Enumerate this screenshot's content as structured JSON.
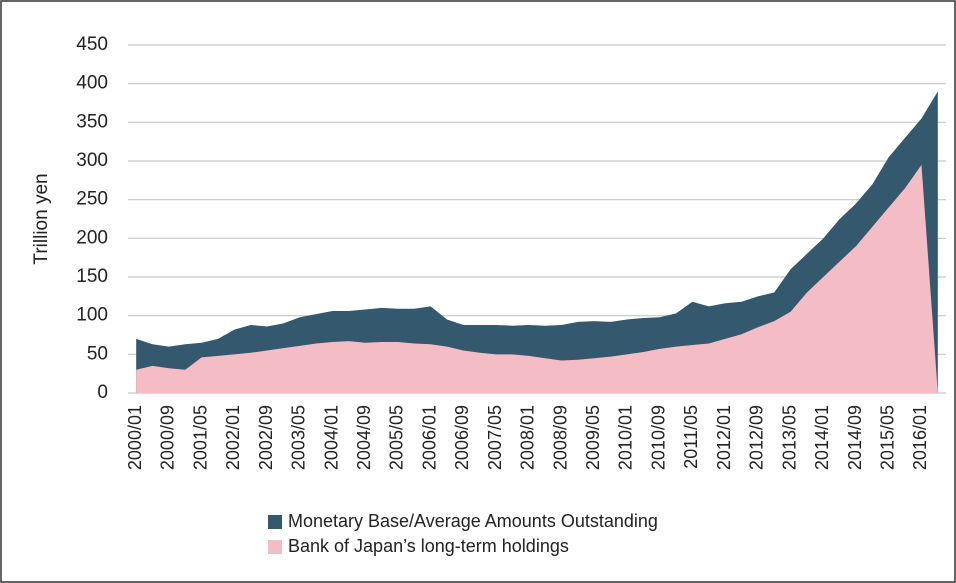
{
  "chart_data": {
    "type": "area",
    "y_label": "Trillion yen",
    "categories": [
      "2000/01",
      null,
      "2000/09",
      null,
      "2001/05",
      null,
      "2002/01",
      null,
      "2002/09",
      null,
      "2003/05",
      null,
      "2004/01",
      null,
      "2004/09",
      null,
      "2005/05",
      null,
      "2006/01",
      null,
      "2006/09",
      null,
      "2007/05",
      null,
      "2008/01",
      null,
      "2008/09",
      null,
      "2009/05",
      null,
      "2010/01",
      null,
      "2010/09",
      null,
      "2011/05",
      null,
      "2012/01",
      null,
      "2012/09",
      null,
      "2013/05",
      null,
      "2014/01",
      null,
      "2014/09",
      null,
      "2015/05",
      null,
      "2016/01",
      null
    ],
    "series": [
      {
        "name": "Monetary Base/Average Amounts Outstanding",
        "color": "#34586e",
        "values": [
          70,
          63,
          60,
          63,
          65,
          70,
          82,
          88,
          86,
          90,
          98,
          102,
          106,
          106,
          108,
          110,
          109,
          109,
          112,
          95,
          88,
          88,
          88,
          87,
          88,
          87,
          88,
          92,
          93,
          92,
          95,
          97,
          98,
          103,
          118,
          112,
          116,
          118,
          125,
          130,
          160,
          180,
          200,
          225,
          245,
          270,
          305,
          330,
          355,
          390
        ]
      },
      {
        "name": "Bank of Japan’s long-term holdings",
        "color": "#f4bcc4",
        "values": [
          30,
          35,
          32,
          30,
          46,
          48,
          50,
          52,
          55,
          58,
          61,
          64,
          66,
          67,
          65,
          66,
          66,
          64,
          63,
          60,
          55,
          52,
          50,
          50,
          48,
          45,
          42,
          43,
          45,
          47,
          50,
          53,
          57,
          60,
          62,
          64,
          70,
          76,
          85,
          93,
          105,
          130,
          150,
          170,
          190,
          215,
          240,
          265,
          295,
          0
        ]
      }
    ],
    "ylim": [
      0,
      450
    ],
    "yticks": [
      0,
      50,
      100,
      150,
      200,
      250,
      300,
      350,
      400,
      450
    ],
    "grid": true
  }
}
